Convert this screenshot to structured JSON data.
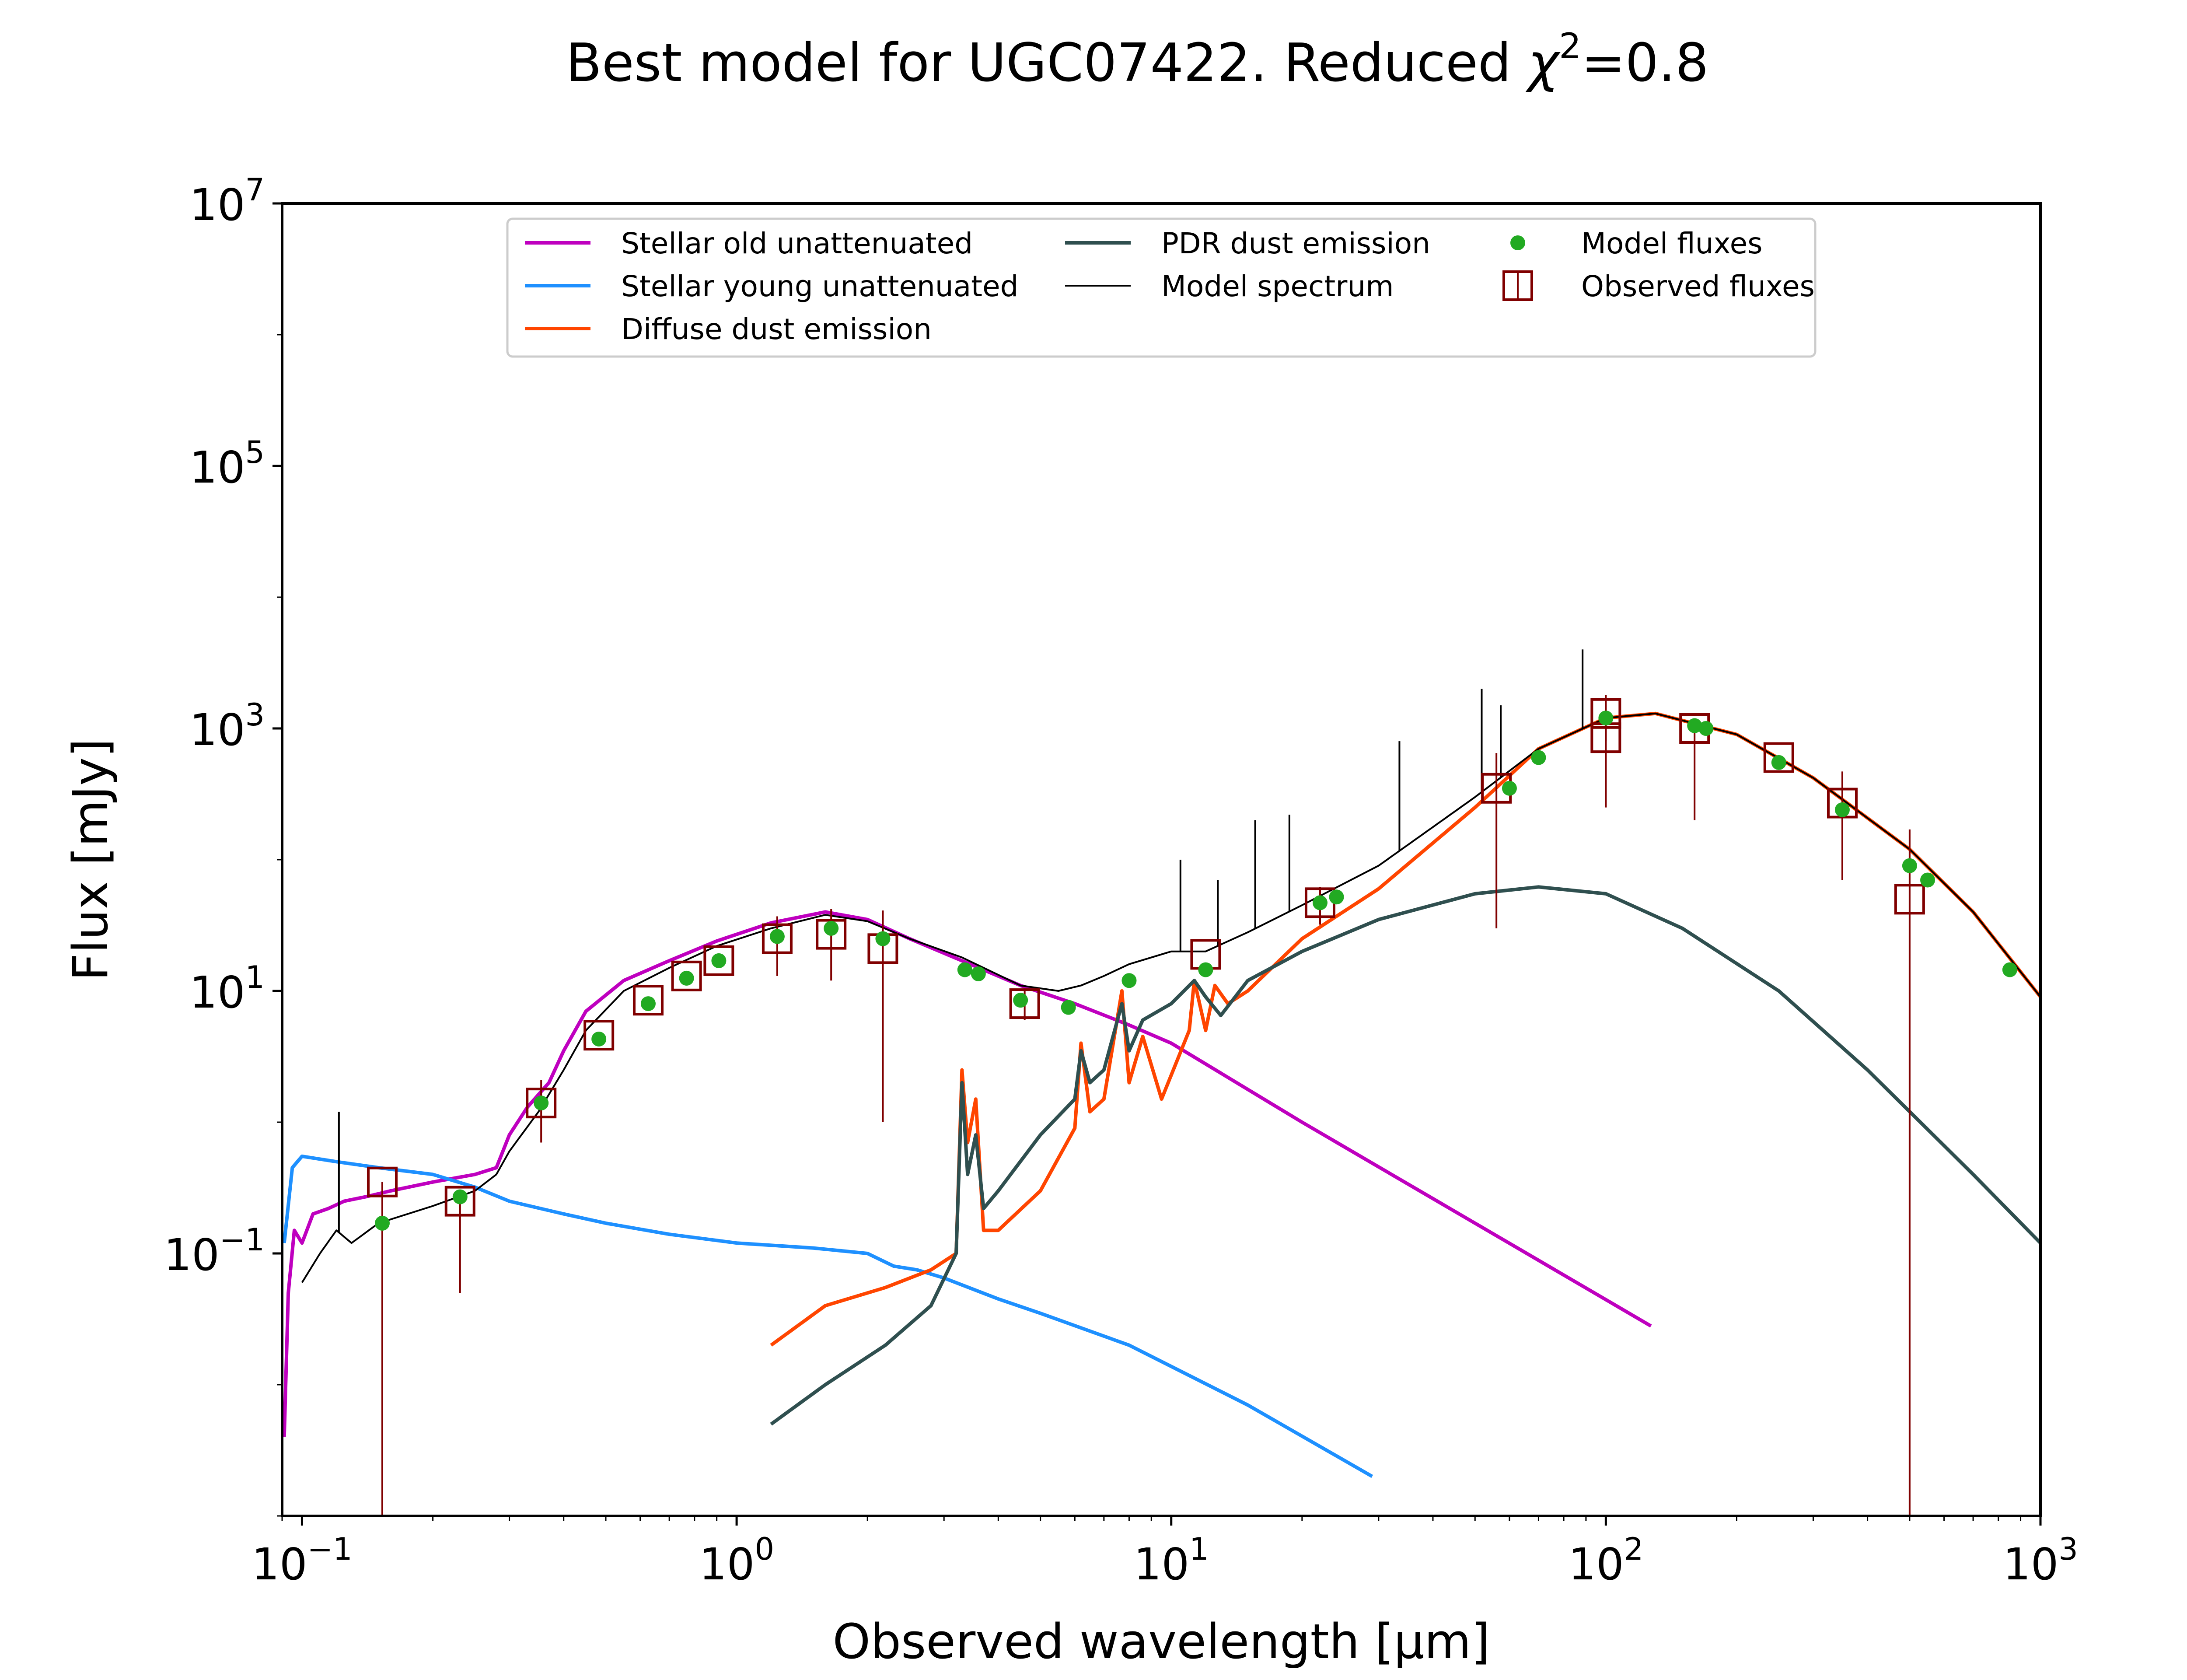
{
  "figure": {
    "title_main": "Best model for UGC07422. Reduced ",
    "title_chi": "χ",
    "title_exp": "2",
    "title_tail": "=0.8",
    "xlabel": "Observed wavelength [μm]",
    "ylabel": "Flux [mJy]"
  },
  "chart_data": {
    "type": "line",
    "title": "Best model for UGC07422. Reduced χ²=0.8",
    "xlabel": "Observed wavelength [μm]",
    "ylabel": "Flux [mJy]",
    "xscale": "log",
    "yscale": "log",
    "xlim": [
      0.09,
      1000
    ],
    "ylim": [
      0.001,
      10000000
    ],
    "grid": false,
    "legend_placement": "top-center",
    "x_ticks": [
      {
        "value": 0.1,
        "base": "10",
        "exp": "−1"
      },
      {
        "value": 1,
        "base": "10",
        "exp": "0"
      },
      {
        "value": 10,
        "base": "10",
        "exp": "1"
      },
      {
        "value": 100,
        "base": "10",
        "exp": "2"
      },
      {
        "value": 1000,
        "base": "10",
        "exp": "3"
      }
    ],
    "y_ticks": [
      {
        "value": 0.1,
        "base": "10",
        "exp": "−1"
      },
      {
        "value": 10,
        "base": "10",
        "exp": "1"
      },
      {
        "value": 1000,
        "base": "10",
        "exp": "3"
      },
      {
        "value": 100000,
        "base": "10",
        "exp": "5"
      },
      {
        "value": 10000000,
        "base": "10",
        "exp": "7"
      }
    ],
    "legend": [
      {
        "label": "Stellar old unattenuated",
        "kind": "line",
        "color": "#bf00bf"
      },
      {
        "label": "Stellar young unattenuated",
        "kind": "line",
        "color": "#1e90ff"
      },
      {
        "label": "Diffuse dust emission",
        "kind": "line",
        "color": "#ff4500"
      },
      {
        "label": "PDR dust emission",
        "kind": "line",
        "color": "#2f4f4f"
      },
      {
        "label": "Model spectrum",
        "kind": "line",
        "color": "#000000"
      },
      {
        "label": "Model fluxes",
        "kind": "dot",
        "color": "#22aa22"
      },
      {
        "label": "Observed fluxes",
        "kind": "square",
        "color": "#800000"
      }
    ],
    "series": [
      {
        "name": "Stellar old unattenuated",
        "color": "#bf00bf",
        "x": [
          0.091,
          0.093,
          0.096,
          0.1,
          0.106,
          0.115,
          0.125,
          0.14,
          0.16,
          0.2,
          0.25,
          0.28,
          0.3,
          0.33,
          0.37,
          0.4,
          0.45,
          0.55,
          0.7,
          0.9,
          1.2,
          1.6,
          2.0,
          2.5,
          3.3,
          4.5,
          6,
          8,
          10,
          20,
          50,
          127
        ],
        "y": [
          0.004,
          0.05,
          0.15,
          0.12,
          0.2,
          0.22,
          0.25,
          0.27,
          0.3,
          0.35,
          0.4,
          0.45,
          0.8,
          1.3,
          2.0,
          3.5,
          7,
          12,
          17,
          24,
          33,
          40,
          35,
          25,
          17,
          11,
          8,
          5.5,
          4,
          1.0,
          0.17,
          0.028
        ]
      },
      {
        "name": "Stellar young unattenuated",
        "color": "#1e90ff",
        "x": [
          0.091,
          0.095,
          0.1,
          0.12,
          0.15,
          0.2,
          0.25,
          0.3,
          0.4,
          0.5,
          0.7,
          1.0,
          1.5,
          2.0,
          2.3,
          2.6,
          3.0,
          4.0,
          5.0,
          8.0,
          15,
          29
        ],
        "y": [
          0.12,
          0.45,
          0.55,
          0.5,
          0.45,
          0.4,
          0.32,
          0.25,
          0.2,
          0.17,
          0.14,
          0.12,
          0.11,
          0.1,
          0.08,
          0.075,
          0.065,
          0.045,
          0.035,
          0.02,
          0.007,
          0.002
        ]
      },
      {
        "name": "Diffuse dust emission",
        "color": "#ff4500",
        "x": [
          1.2,
          1.6,
          2.2,
          2.8,
          3.2,
          3.3,
          3.4,
          3.55,
          3.7,
          4.0,
          5.0,
          6.0,
          6.2,
          6.5,
          7.0,
          7.7,
          8.0,
          8.6,
          9.5,
          11.0,
          11.3,
          12.0,
          12.6,
          13.5,
          15,
          20,
          30,
          50,
          70,
          100,
          130,
          200,
          300,
          500,
          700,
          1000
        ],
        "y": [
          0.02,
          0.04,
          0.055,
          0.075,
          0.1,
          2.5,
          0.7,
          1.5,
          0.15,
          0.15,
          0.3,
          0.9,
          4.0,
          1.2,
          1.5,
          10,
          2.0,
          4.5,
          1.5,
          5.0,
          12,
          5.0,
          11,
          8.0,
          10,
          25,
          60,
          250,
          700,
          1200,
          1300,
          900,
          420,
          120,
          40,
          9.0
        ]
      },
      {
        "name": "PDR dust emission",
        "color": "#2f4f4f",
        "x": [
          1.2,
          1.6,
          2.2,
          2.8,
          3.2,
          3.3,
          3.4,
          3.55,
          3.7,
          4.0,
          5.0,
          6.0,
          6.2,
          6.5,
          7.0,
          7.7,
          8.0,
          8.6,
          10,
          11.3,
          12,
          13,
          15,
          20,
          30,
          50,
          70,
          100,
          150,
          250,
          400,
          700,
          1000
        ],
        "y": [
          0.005,
          0.01,
          0.02,
          0.04,
          0.1,
          2.0,
          0.4,
          0.8,
          0.22,
          0.3,
          0.8,
          1.5,
          3.5,
          2.0,
          2.5,
          8.0,
          3.5,
          6.0,
          8.0,
          12,
          9.0,
          6.5,
          12,
          20,
          35,
          55,
          62,
          55,
          30,
          10,
          2.5,
          0.4,
          0.12
        ]
      },
      {
        "name": "Model spectrum",
        "color": "#000000",
        "x": [
          0.1,
          0.11,
          0.12,
          0.13,
          0.15,
          0.2,
          0.25,
          0.28,
          0.3,
          0.35,
          0.4,
          0.45,
          0.55,
          0.7,
          0.9,
          1.2,
          1.6,
          2.0,
          2.5,
          3.3,
          4.5,
          5.5,
          6.2,
          7.0,
          8.0,
          10,
          12,
          15,
          20,
          30,
          50,
          70,
          100,
          130,
          200,
          300,
          500,
          700,
          1000
        ],
        "y": [
          0.06,
          0.1,
          0.15,
          0.12,
          0.17,
          0.23,
          0.3,
          0.4,
          0.6,
          1.2,
          2.5,
          5,
          10,
          15,
          22,
          30,
          38,
          34,
          25,
          18,
          11,
          10,
          11,
          13,
          16,
          20,
          20,
          28,
          45,
          90,
          300,
          700,
          1200,
          1300,
          900,
          420,
          120,
          40,
          9.0
        ]
      }
    ],
    "model_spectrum_emission_lines": [
      {
        "x": 0.1216,
        "y": 1.2
      },
      {
        "x": 10.5,
        "y": 100
      },
      {
        "x": 12.8,
        "y": 70
      },
      {
        "x": 15.6,
        "y": 200
      },
      {
        "x": 18.7,
        "y": 220
      },
      {
        "x": 33.5,
        "y": 800
      },
      {
        "x": 51.8,
        "y": 2000
      },
      {
        "x": 57.3,
        "y": 1500
      },
      {
        "x": 88.4,
        "y": 4000
      }
    ],
    "model_fluxes": {
      "x": [
        0.153,
        0.231,
        0.355,
        0.482,
        0.626,
        0.767,
        0.91,
        1.24,
        1.65,
        2.17,
        3.35,
        3.6,
        4.5,
        5.8,
        8.0,
        12.0,
        22.0,
        24.0,
        60,
        70,
        100,
        160,
        170,
        250,
        350,
        500,
        550,
        850
      ],
      "y": [
        0.17,
        0.27,
        1.4,
        4.3,
        8.0,
        12.5,
        17,
        26,
        30,
        25,
        14.5,
        13.5,
        8.5,
        7.5,
        12.0,
        14.5,
        47,
        52,
        350,
        600,
        1200,
        1050,
        1000,
        550,
        240,
        90,
        70,
        14.5
      ]
    },
    "observed_fluxes": {
      "x": [
        0.153,
        0.231,
        0.355,
        0.482,
        0.626,
        0.767,
        0.91,
        1.24,
        1.65,
        2.17,
        4.6,
        12.0,
        22.0,
        56,
        100,
        100,
        160,
        250,
        350,
        500
      ],
      "y": [
        0.35,
        0.25,
        1.4,
        4.6,
        8.5,
        13,
        17,
        25,
        27,
        21,
        8.0,
        19,
        47,
        350,
        850,
        1300,
        1000,
        600,
        270,
        50
      ],
      "yerr_low": [
        0.35,
        0.2,
        0.7,
        0.0,
        0.0,
        0.0,
        0.0,
        12,
        15,
        20,
        2.0,
        0.0,
        15,
        320,
        600,
        500,
        800,
        0.0,
        200,
        49.999
      ],
      "yerr_high": [
        0.0,
        0.0,
        0.7,
        0.0,
        0.0,
        0.0,
        0.0,
        12,
        15,
        20,
        2.0,
        0.0,
        15,
        300,
        450,
        500,
        0.0,
        0.0,
        200,
        120
      ]
    }
  }
}
